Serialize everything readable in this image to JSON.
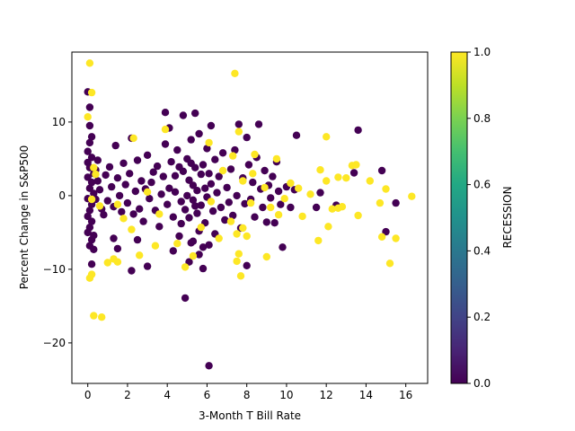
{
  "chart_data": {
    "type": "scatter",
    "title": "",
    "xlabel": "3-Month T Bill Rate",
    "ylabel": "Percent Change in S&P500",
    "xlim": [
      -0.8,
      17.1
    ],
    "ylim": [
      -25.5,
      19.5
    ],
    "xticks": [
      0,
      2,
      4,
      6,
      8,
      10,
      12,
      14,
      16
    ],
    "yticks": [
      -20,
      -10,
      0,
      10
    ],
    "grid": false,
    "colorbar": {
      "label": "RECESSION",
      "min": 0.0,
      "max": 1.0,
      "ticks": [
        "0.0",
        "0.2",
        "0.4",
        "0.6",
        "0.8",
        "1.0"
      ],
      "colormap": "viridis"
    },
    "series": [
      {
        "recession": 0,
        "color": "#440154",
        "points": [
          [
            0.0,
            14.1
          ],
          [
            0.1,
            12.0
          ],
          [
            0.1,
            9.5
          ],
          [
            0.2,
            8.0
          ],
          [
            0.1,
            7.2
          ],
          [
            0.0,
            6.0
          ],
          [
            0.2,
            5.2
          ],
          [
            0.0,
            4.5
          ],
          [
            0.1,
            3.8
          ],
          [
            0.3,
            3.0
          ],
          [
            0.0,
            2.5
          ],
          [
            0.2,
            1.8
          ],
          [
            0.1,
            1.0
          ],
          [
            0.3,
            0.3
          ],
          [
            0.0,
            -0.4
          ],
          [
            0.2,
            -1.2
          ],
          [
            0.1,
            -2.0
          ],
          [
            0.0,
            -2.8
          ],
          [
            0.2,
            -3.5
          ],
          [
            0.1,
            -4.3
          ],
          [
            0.0,
            -5.0
          ],
          [
            0.2,
            -6.0
          ],
          [
            0.1,
            -6.8
          ],
          [
            0.3,
            -5.4
          ],
          [
            0.4,
            3.5
          ],
          [
            0.5,
            2.0
          ],
          [
            0.6,
            0.8
          ],
          [
            0.4,
            -0.5
          ],
          [
            0.7,
            -1.8
          ],
          [
            0.5,
            4.8
          ],
          [
            0.2,
            -9.3
          ],
          [
            0.3,
            -7.3
          ],
          [
            0.8,
            -2.6
          ],
          [
            0.9,
            2.8
          ],
          [
            1.0,
            -0.7
          ],
          [
            1.1,
            3.9
          ],
          [
            1.2,
            1.2
          ],
          [
            1.3,
            -1.5
          ],
          [
            1.4,
            6.8
          ],
          [
            1.3,
            -5.8
          ],
          [
            1.5,
            2.4
          ],
          [
            1.6,
            0.0
          ],
          [
            1.7,
            -2.2
          ],
          [
            1.8,
            4.4
          ],
          [
            1.5,
            -7.2
          ],
          [
            1.9,
            1.5
          ],
          [
            2.0,
            -1.0
          ],
          [
            2.1,
            3.0
          ],
          [
            2.2,
            7.8
          ],
          [
            2.3,
            -2.5
          ],
          [
            2.4,
            0.6
          ],
          [
            2.2,
            -10.2
          ],
          [
            2.5,
            4.8
          ],
          [
            2.6,
            -1.8
          ],
          [
            2.7,
            2.0
          ],
          [
            2.8,
            -3.5
          ],
          [
            2.9,
            0.9
          ],
          [
            3.0,
            5.5
          ],
          [
            3.1,
            -0.4
          ],
          [
            2.5,
            -6.0
          ],
          [
            3.2,
            1.8
          ],
          [
            3.3,
            3.2
          ],
          [
            3.4,
            -2.0
          ],
          [
            3.0,
            -9.6
          ],
          [
            3.5,
            4.0
          ],
          [
            3.6,
            -4.2
          ],
          [
            3.7,
            0.2
          ],
          [
            3.8,
            2.6
          ],
          [
            3.9,
            7.0
          ],
          [
            3.9,
            11.3
          ],
          [
            4.0,
            -1.2
          ],
          [
            4.1,
            1.0
          ],
          [
            4.2,
            4.6
          ],
          [
            4.3,
            -2.9
          ],
          [
            4.1,
            9.2
          ],
          [
            4.4,
            0.5
          ],
          [
            4.5,
            6.2
          ],
          [
            4.6,
            -5.5
          ],
          [
            4.4,
            2.7
          ],
          [
            4.7,
            -0.8
          ],
          [
            4.8,
            3.3
          ],
          [
            4.9,
            -1.9
          ],
          [
            4.8,
            10.9
          ],
          [
            4.9,
            -13.9
          ],
          [
            5.0,
            0.0
          ],
          [
            5.0,
            5.0
          ],
          [
            5.1,
            -3.0
          ],
          [
            5.1,
            2.1
          ],
          [
            5.2,
            -6.4
          ],
          [
            5.2,
            7.6
          ],
          [
            5.3,
            1.4
          ],
          [
            5.3,
            -0.6
          ],
          [
            5.4,
            11.2
          ],
          [
            5.4,
            3.8
          ],
          [
            5.5,
            -2.4
          ],
          [
            5.5,
            0.7
          ],
          [
            5.6,
            8.4
          ],
          [
            5.6,
            -4.8
          ],
          [
            5.7,
            2.9
          ],
          [
            5.7,
            -1.3
          ],
          [
            5.8,
            4.2
          ],
          [
            5.8,
            -9.9
          ],
          [
            5.9,
            1.0
          ],
          [
            5.9,
            -3.7
          ],
          [
            6.0,
            6.4
          ],
          [
            6.0,
            -0.2
          ],
          [
            6.1,
            3.0
          ],
          [
            6.1,
            -6.7
          ],
          [
            6.1,
            -23.1
          ],
          [
            6.2,
            9.5
          ],
          [
            6.2,
            1.6
          ],
          [
            6.3,
            -2.1
          ],
          [
            6.4,
            4.9
          ],
          [
            6.4,
            -5.2
          ],
          [
            6.5,
            0.4
          ],
          [
            6.6,
            2.6
          ],
          [
            6.7,
            -1.6
          ],
          [
            6.8,
            5.8
          ],
          [
            6.9,
            -3.3
          ],
          [
            7.0,
            1.1
          ],
          [
            7.1,
            -0.9
          ],
          [
            7.2,
            3.6
          ],
          [
            7.3,
            -2.7
          ],
          [
            7.4,
            6.2
          ],
          [
            7.5,
            0.0
          ],
          [
            7.6,
            9.7
          ],
          [
            7.7,
            -4.4
          ],
          [
            7.8,
            2.4
          ],
          [
            7.9,
            -1.1
          ],
          [
            8.0,
            7.9
          ],
          [
            8.0,
            -9.5
          ],
          [
            8.1,
            4.2
          ],
          [
            8.2,
            -0.5
          ],
          [
            8.3,
            1.8
          ],
          [
            8.4,
            -2.9
          ],
          [
            8.5,
            5.2
          ],
          [
            8.6,
            9.7
          ],
          [
            8.7,
            0.9
          ],
          [
            8.8,
            -1.6
          ],
          [
            8.9,
            3.4
          ],
          [
            9.0,
            -3.6
          ],
          [
            9.1,
            1.4
          ],
          [
            9.2,
            -0.3
          ],
          [
            9.3,
            2.6
          ],
          [
            9.4,
            -3.7
          ],
          [
            9.5,
            4.6
          ],
          [
            9.6,
            0.6
          ],
          [
            9.7,
            -1.2
          ],
          [
            9.8,
            -7.0
          ],
          [
            10.0,
            1.2
          ],
          [
            10.2,
            -1.6
          ],
          [
            10.4,
            0.8
          ],
          [
            10.5,
            8.2
          ],
          [
            11.5,
            -1.6
          ],
          [
            11.7,
            0.4
          ],
          [
            12.5,
            -1.3
          ],
          [
            13.4,
            3.1
          ],
          [
            13.6,
            8.9
          ],
          [
            14.8,
            3.4
          ],
          [
            15.0,
            -4.9
          ],
          [
            15.5,
            -1.0
          ],
          [
            5.1,
            -9.0
          ],
          [
            5.6,
            -8.0
          ],
          [
            4.3,
            -7.5
          ],
          [
            5.8,
            -7.0
          ],
          [
            5.3,
            -6.2
          ],
          [
            4.7,
            -3.8
          ],
          [
            5.2,
            4.4
          ],
          [
            4.6,
            3.9
          ],
          [
            5.4,
            -1.4
          ]
        ]
      },
      {
        "recession": 1,
        "color": "#fde725",
        "points": [
          [
            0.1,
            18.0
          ],
          [
            0.2,
            14.0
          ],
          [
            0.0,
            10.7
          ],
          [
            0.1,
            -11.2
          ],
          [
            0.2,
            -10.7
          ],
          [
            0.3,
            -16.3
          ],
          [
            0.7,
            -16.5
          ],
          [
            0.3,
            3.8
          ],
          [
            0.2,
            -0.5
          ],
          [
            0.6,
            -1.4
          ],
          [
            1.0,
            -9.1
          ],
          [
            1.3,
            -8.6
          ],
          [
            1.5,
            -9.0
          ],
          [
            1.5,
            -1.2
          ],
          [
            2.3,
            7.8
          ],
          [
            2.2,
            -4.6
          ],
          [
            2.6,
            -8.1
          ],
          [
            3.0,
            0.5
          ],
          [
            3.4,
            -6.8
          ],
          [
            3.6,
            -2.5
          ],
          [
            3.9,
            9.0
          ],
          [
            4.5,
            -6.5
          ],
          [
            4.9,
            -9.7
          ],
          [
            5.3,
            -8.2
          ],
          [
            6.1,
            7.2
          ],
          [
            6.2,
            -0.8
          ],
          [
            6.6,
            -5.8
          ],
          [
            7.3,
            5.4
          ],
          [
            7.4,
            16.6
          ],
          [
            7.5,
            -5.2
          ],
          [
            7.5,
            -8.9
          ],
          [
            7.6,
            -7.9
          ],
          [
            7.6,
            8.7
          ],
          [
            7.7,
            -10.9
          ],
          [
            7.8,
            2.0
          ],
          [
            7.8,
            -4.4
          ],
          [
            8.0,
            -5.5
          ],
          [
            8.2,
            -1.0
          ],
          [
            8.3,
            3.0
          ],
          [
            8.4,
            5.6
          ],
          [
            9.0,
            -8.3
          ],
          [
            9.2,
            -1.6
          ],
          [
            9.5,
            5.0
          ],
          [
            9.6,
            -2.6
          ],
          [
            10.2,
            1.7
          ],
          [
            10.8,
            -2.8
          ],
          [
            11.2,
            0.2
          ],
          [
            11.6,
            -6.1
          ],
          [
            11.7,
            3.5
          ],
          [
            12.0,
            8.0
          ],
          [
            12.0,
            2.0
          ],
          [
            12.1,
            -4.2
          ],
          [
            12.3,
            -1.8
          ],
          [
            12.6,
            -1.7
          ],
          [
            12.8,
            -1.5
          ],
          [
            13.0,
            2.4
          ],
          [
            13.3,
            4.1
          ],
          [
            13.5,
            4.2
          ],
          [
            13.6,
            -2.7
          ],
          [
            14.7,
            -1.0
          ],
          [
            14.8,
            -5.6
          ],
          [
            15.0,
            0.9
          ],
          [
            15.2,
            -9.2
          ],
          [
            15.5,
            -5.8
          ],
          [
            16.3,
            -0.1
          ],
          [
            6.8,
            3.4
          ],
          [
            7.2,
            -3.5
          ],
          [
            8.9,
            1.1
          ],
          [
            9.9,
            -0.4
          ],
          [
            10.6,
            1.0
          ],
          [
            12.6,
            2.5
          ],
          [
            14.2,
            2.0
          ],
          [
            0.4,
            2.9
          ],
          [
            1.8,
            -3.1
          ],
          [
            5.7,
            -4.3
          ]
        ]
      }
    ]
  }
}
